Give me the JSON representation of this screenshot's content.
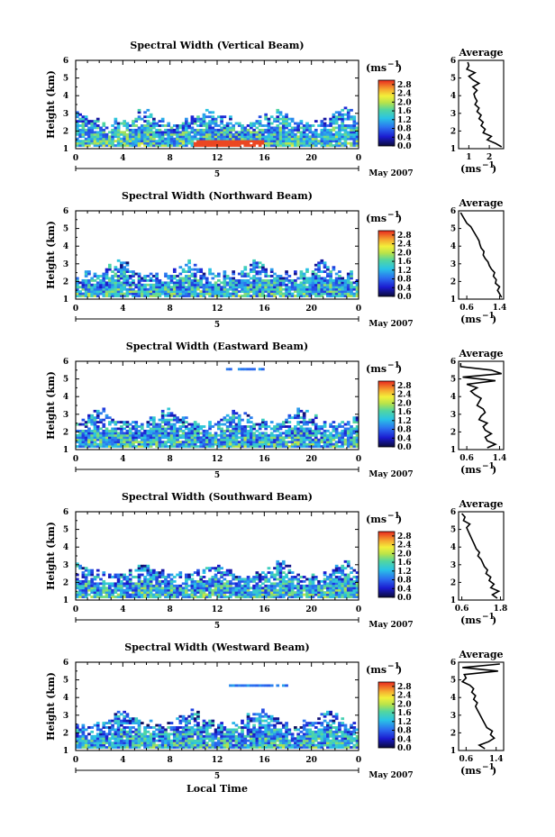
{
  "figure": {
    "xlabel": "Local Time",
    "month_label": "May 2007",
    "day_label": "5",
    "colorbar_unit_base": "(ms",
    "colorbar_unit_exp": "−1",
    "colorbar_unit_close": ")",
    "avg_title": "Average",
    "avg_unit_base": "(ms",
    "avg_unit_exp": "−1",
    "avg_unit_close": ")"
  },
  "chart_data": [
    {
      "type": "heatmap",
      "title": "Spectral Width (Vertical Beam)",
      "ylabel": "Height (km)",
      "xlim": [
        0,
        24
      ],
      "ylim": [
        1,
        6
      ],
      "x_ticks": [
        "0",
        "4",
        "8",
        "12",
        "16",
        "20",
        "0"
      ],
      "y_ticks": [
        "1",
        "2",
        "3",
        "4",
        "5",
        "6"
      ],
      "colorbar": {
        "ticks": [
          "0.0",
          "0.4",
          "0.8",
          "1.2",
          "1.6",
          "2.0",
          "2.4",
          "2.8"
        ],
        "range": [
          0,
          3
        ]
      },
      "cloud_top_km": 3.3,
      "mean_intensity": 0.95,
      "layers": [],
      "profile": {
        "title": "Average",
        "xlim": [
          0.5,
          2.7
        ],
        "x_ticks": [
          "1",
          "2"
        ],
        "x_tick_values": [
          1,
          2
        ],
        "height": [
          1.1,
          1.3,
          1.5,
          1.7,
          1.9,
          2.1,
          2.3,
          2.5,
          2.7,
          2.9,
          3.1,
          3.3,
          3.5,
          3.7,
          3.9,
          4.1,
          4.3,
          4.5,
          4.7,
          4.9,
          5.1,
          5.3,
          5.5,
          5.7,
          5.9
        ],
        "value": [
          2.6,
          2.3,
          1.9,
          2.1,
          1.7,
          1.8,
          1.6,
          1.7,
          1.5,
          1.6,
          1.4,
          1.5,
          1.3,
          1.4,
          1.3,
          1.25,
          1.4,
          1.2,
          1.5,
          1.2,
          1.0,
          1.3,
          0.9,
          1.0,
          0.95
        ]
      }
    },
    {
      "type": "heatmap",
      "title": "Spectral Width (Northward Beam)",
      "ylabel": "Height (km)",
      "xlim": [
        0,
        24
      ],
      "ylim": [
        1,
        6
      ],
      "x_ticks": [
        "0",
        "4",
        "8",
        "12",
        "16",
        "20",
        "0"
      ],
      "y_ticks": [
        "1",
        "2",
        "3",
        "4",
        "5",
        "6"
      ],
      "colorbar": {
        "ticks": [
          "0.0",
          "0.4",
          "0.8",
          "1.2",
          "1.6",
          "2.0",
          "2.4",
          "2.8"
        ],
        "range": [
          0,
          3
        ]
      },
      "cloud_top_km": 3.2,
      "mean_intensity": 0.85,
      "layers": [],
      "profile": {
        "title": "Average",
        "xlim": [
          0.4,
          1.5
        ],
        "x_ticks": [
          "0.6",
          "1.4"
        ],
        "x_tick_values": [
          0.6,
          1.4
        ],
        "height": [
          1.1,
          1.3,
          1.5,
          1.7,
          1.9,
          2.1,
          2.3,
          2.5,
          2.7,
          2.9,
          3.1,
          3.3,
          3.5,
          3.7,
          3.9,
          4.1,
          4.3,
          4.5,
          4.7,
          4.9,
          5.1,
          5.3,
          5.5,
          5.7,
          5.9
        ],
        "value": [
          1.45,
          1.4,
          1.35,
          1.4,
          1.3,
          1.32,
          1.25,
          1.28,
          1.2,
          1.15,
          1.12,
          1.05,
          1.0,
          1.02,
          0.95,
          0.92,
          0.9,
          0.85,
          0.8,
          0.75,
          0.7,
          0.6,
          0.55,
          0.5,
          0.45
        ]
      }
    },
    {
      "type": "heatmap",
      "title": "Spectral Width (Eastward Beam)",
      "ylabel": "Height (km)",
      "xlim": [
        0,
        24
      ],
      "ylim": [
        1,
        6
      ],
      "x_ticks": [
        "0",
        "4",
        "8",
        "12",
        "16",
        "20",
        "0"
      ],
      "y_ticks": [
        "1",
        "2",
        "3",
        "4",
        "5",
        "6"
      ],
      "colorbar": {
        "ticks": [
          "0.0",
          "0.4",
          "0.8",
          "1.2",
          "1.6",
          "2.0",
          "2.4",
          "2.8"
        ],
        "range": [
          0,
          3
        ]
      },
      "cloud_top_km": 3.3,
      "mean_intensity": 0.85,
      "layers": [
        {
          "height_km": 5.6,
          "x_start": 12.8,
          "x_end": 16.2
        }
      ],
      "profile": {
        "title": "Average",
        "xlim": [
          0.4,
          1.5
        ],
        "x_ticks": [
          "0.6",
          "1.4"
        ],
        "x_tick_values": [
          0.6,
          1.4
        ],
        "height": [
          1.1,
          1.3,
          1.5,
          1.7,
          1.9,
          2.1,
          2.3,
          2.5,
          2.7,
          2.9,
          3.1,
          3.3,
          3.5,
          3.7,
          3.9,
          4.1,
          4.3,
          4.5,
          4.7,
          4.9,
          5.1,
          5.3,
          5.5,
          5.7,
          5.9
        ],
        "value": [
          1.1,
          1.3,
          1.1,
          1.05,
          1.2,
          1.05,
          1.0,
          1.1,
          0.9,
          0.95,
          1.05,
          1.0,
          0.85,
          0.9,
          0.95,
          0.8,
          0.7,
          0.85,
          0.6,
          1.3,
          0.5,
          1.45,
          1.2,
          0.45,
          0.45
        ]
      }
    },
    {
      "type": "heatmap",
      "title": "Spectral Width (Southward Beam)",
      "ylabel": "Height (km)",
      "xlim": [
        0,
        24
      ],
      "ylim": [
        1,
        6
      ],
      "x_ticks": [
        "0",
        "4",
        "8",
        "12",
        "16",
        "20",
        "0"
      ],
      "y_ticks": [
        "1",
        "2",
        "3",
        "4",
        "5",
        "6"
      ],
      "colorbar": {
        "ticks": [
          "0.0",
          "0.4",
          "0.8",
          "1.2",
          "1.6",
          "2.0",
          "2.4",
          "2.8"
        ],
        "range": [
          0,
          3
        ]
      },
      "cloud_top_km": 3.2,
      "mean_intensity": 0.85,
      "layers": [],
      "profile": {
        "title": "Average",
        "xlim": [
          0.5,
          1.9
        ],
        "x_ticks": [
          "0.6",
          "1.8"
        ],
        "x_tick_values": [
          0.6,
          1.8
        ],
        "height": [
          1.1,
          1.3,
          1.5,
          1.7,
          1.9,
          2.1,
          2.3,
          2.5,
          2.7,
          2.9,
          3.1,
          3.3,
          3.5,
          3.7,
          3.9,
          4.1,
          4.3,
          4.5,
          4.7,
          4.9,
          5.1,
          5.3,
          5.5,
          5.7,
          5.9
        ],
        "value": [
          1.7,
          1.55,
          1.75,
          1.5,
          1.6,
          1.45,
          1.5,
          1.35,
          1.4,
          1.3,
          1.25,
          1.2,
          1.1,
          1.15,
          1.05,
          1.0,
          0.95,
          0.9,
          0.85,
          0.8,
          0.75,
          0.85,
          0.65,
          0.7,
          0.6
        ]
      }
    },
    {
      "type": "heatmap",
      "title": "Spectral Width (Westward Beam)",
      "ylabel": "Height (km)",
      "xlim": [
        0,
        24
      ],
      "ylim": [
        1,
        6
      ],
      "x_ticks": [
        "0",
        "4",
        "8",
        "12",
        "16",
        "20",
        "0"
      ],
      "y_ticks": [
        "1",
        "2",
        "3",
        "4",
        "5",
        "6"
      ],
      "colorbar": {
        "ticks": [
          "0.0",
          "0.4",
          "0.8",
          "1.2",
          "1.6",
          "2.0",
          "2.4",
          "2.8"
        ],
        "range": [
          0,
          3
        ]
      },
      "cloud_top_km": 3.3,
      "mean_intensity": 0.8,
      "layers": [
        {
          "height_km": 4.7,
          "x_start": 13.0,
          "x_end": 18.0
        }
      ],
      "profile": {
        "title": "Average",
        "xlim": [
          0.4,
          1.6
        ],
        "x_ticks": [
          "0.6",
          "1.4"
        ],
        "x_tick_values": [
          0.6,
          1.4
        ],
        "height": [
          1.1,
          1.3,
          1.5,
          1.7,
          1.9,
          2.1,
          2.3,
          2.5,
          2.7,
          2.9,
          3.1,
          3.3,
          3.5,
          3.7,
          3.9,
          4.1,
          4.3,
          4.5,
          4.7,
          4.9,
          5.1,
          5.3,
          5.5,
          5.7,
          5.9
        ],
        "value": [
          1.1,
          0.95,
          1.2,
          1.35,
          1.25,
          1.3,
          1.15,
          1.1,
          1.05,
          1.0,
          0.95,
          0.9,
          0.85,
          0.9,
          0.8,
          0.85,
          0.75,
          0.8,
          0.7,
          0.5,
          0.6,
          0.55,
          1.45,
          0.5,
          1.5
        ]
      }
    }
  ]
}
